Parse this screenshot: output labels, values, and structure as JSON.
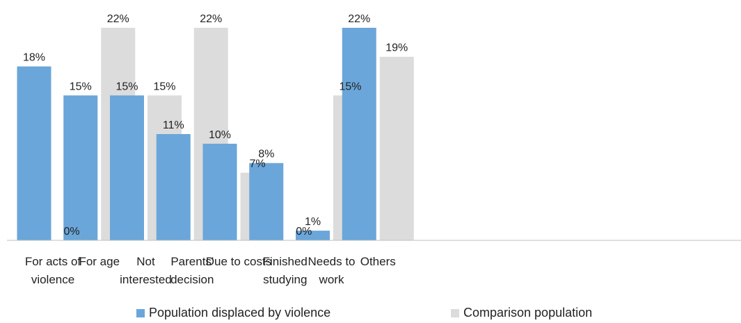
{
  "chart_data": {
    "type": "bar",
    "categories": [
      [
        "For acts of",
        "violence"
      ],
      [
        "For age"
      ],
      [
        "Not",
        "interested"
      ],
      [
        "Parents'",
        "decision"
      ],
      [
        "Due to costs"
      ],
      [
        "Finished",
        "studying"
      ],
      [
        "Needs to",
        "work"
      ],
      [
        "Others"
      ]
    ],
    "series": [
      {
        "name": "Population displaced by violence",
        "color": "#6aa6d9",
        "values": [
          18,
          15,
          15,
          11,
          10,
          8,
          1,
          22
        ],
        "labels": [
          "18%",
          "15%",
          "15%",
          "11%",
          "10%",
          "8%",
          "1%",
          "22%"
        ]
      },
      {
        "name": "Comparison population",
        "color": "#dcdcdc",
        "values": [
          0,
          22,
          15,
          22,
          7,
          0,
          15,
          19
        ],
        "labels": [
          "0%",
          "22%",
          "15%",
          "22%",
          "7%",
          "0%",
          "15%",
          "19%"
        ]
      }
    ],
    "title": "",
    "xlabel": "",
    "ylabel": "",
    "ylim": [
      0,
      22
    ],
    "grid": false,
    "legend_position": "bottom"
  }
}
